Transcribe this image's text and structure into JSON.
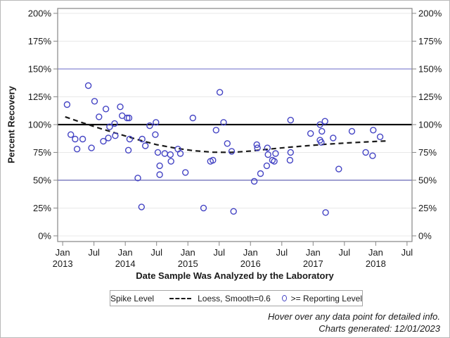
{
  "figure": {
    "footer_line1": "Hover over any data point for detailed info.",
    "footer_line2": "Charts generated: 12/01/2023"
  },
  "chart_data": {
    "type": "scatter",
    "title": "",
    "xlabel": "Date Sample Was Analyzed by the Laboratory",
    "ylabel": "Percent Recovery",
    "x_axis": {
      "min": 2012.92,
      "max": 2018.58,
      "ticks": [
        {
          "x": 2013.0,
          "line1": "Jan",
          "line2": "2013"
        },
        {
          "x": 2013.5,
          "line1": "Jul",
          "line2": ""
        },
        {
          "x": 2014.0,
          "line1": "Jan",
          "line2": "2014"
        },
        {
          "x": 2014.5,
          "line1": "Jul",
          "line2": ""
        },
        {
          "x": 2015.0,
          "line1": "Jan",
          "line2": "2015"
        },
        {
          "x": 2015.5,
          "line1": "Jul",
          "line2": ""
        },
        {
          "x": 2016.0,
          "line1": "Jan",
          "line2": "2016"
        },
        {
          "x": 2016.5,
          "line1": "Jul",
          "line2": ""
        },
        {
          "x": 2017.0,
          "line1": "Jan",
          "line2": "2017"
        },
        {
          "x": 2017.5,
          "line1": "Jul",
          "line2": ""
        },
        {
          "x": 2018.0,
          "line1": "Jan",
          "line2": "2018"
        },
        {
          "x": 2018.5,
          "line1": "Jul",
          "line2": ""
        }
      ]
    },
    "y_axis": {
      "min": -5.1,
      "max": 204.4,
      "ticks": [
        0,
        25,
        50,
        75,
        100,
        125,
        150,
        175,
        200
      ],
      "tick_suffix": "%",
      "mirrored_right": true,
      "grid": true
    },
    "reference_lines": [
      {
        "value": 150,
        "color": "#7a7ace",
        "width": 1.2
      },
      {
        "value": 100,
        "color": "#000000",
        "width": 2.2
      },
      {
        "value": 50,
        "color": "#5555ae",
        "width": 1.2
      }
    ],
    "series": [
      {
        "name": ">= Reporting Level",
        "kind": "scatter",
        "marker": "open-circle",
        "color": "#4444c4",
        "points": [
          [
            2013.07,
            118
          ],
          [
            2013.13,
            91
          ],
          [
            2013.2,
            87
          ],
          [
            2013.23,
            78
          ],
          [
            2013.32,
            87
          ],
          [
            2013.41,
            135
          ],
          [
            2013.46,
            79
          ],
          [
            2013.51,
            121
          ],
          [
            2013.58,
            107
          ],
          [
            2013.65,
            85
          ],
          [
            2013.69,
            114
          ],
          [
            2013.73,
            88
          ],
          [
            2013.75,
            98
          ],
          [
            2013.83,
            101
          ],
          [
            2013.84,
            90
          ],
          [
            2013.92,
            116
          ],
          [
            2013.95,
            108
          ],
          [
            2014.03,
            106
          ],
          [
            2014.05,
            77
          ],
          [
            2014.06,
            106
          ],
          [
            2014.07,
            87
          ],
          [
            2014.2,
            52
          ],
          [
            2014.26,
            26
          ],
          [
            2014.27,
            87
          ],
          [
            2014.32,
            81
          ],
          [
            2014.39,
            99
          ],
          [
            2014.48,
            91
          ],
          [
            2014.49,
            102
          ],
          [
            2014.52,
            75
          ],
          [
            2014.55,
            63
          ],
          [
            2014.55,
            55
          ],
          [
            2014.63,
            74
          ],
          [
            2014.72,
            73
          ],
          [
            2014.73,
            67
          ],
          [
            2014.84,
            78
          ],
          [
            2014.88,
            74
          ],
          [
            2014.96,
            57
          ],
          [
            2015.08,
            106
          ],
          [
            2015.25,
            25
          ],
          [
            2015.36,
            67
          ],
          [
            2015.4,
            68
          ],
          [
            2015.45,
            95
          ],
          [
            2015.51,
            129
          ],
          [
            2015.57,
            102
          ],
          [
            2015.63,
            83
          ],
          [
            2015.7,
            76
          ],
          [
            2015.73,
            22
          ],
          [
            2016.06,
            49
          ],
          [
            2016.1,
            82
          ],
          [
            2016.11,
            79
          ],
          [
            2016.16,
            56
          ],
          [
            2016.26,
            63
          ],
          [
            2016.27,
            79
          ],
          [
            2016.28,
            73
          ],
          [
            2016.35,
            68
          ],
          [
            2016.38,
            67
          ],
          [
            2016.4,
            74
          ],
          [
            2016.63,
            68
          ],
          [
            2016.64,
            104
          ],
          [
            2016.64,
            75
          ],
          [
            2016.96,
            92
          ],
          [
            2017.11,
            100
          ],
          [
            2017.11,
            86
          ],
          [
            2017.13,
            84
          ],
          [
            2017.14,
            94
          ],
          [
            2017.19,
            103
          ],
          [
            2017.2,
            21
          ],
          [
            2017.32,
            88
          ],
          [
            2017.41,
            60
          ],
          [
            2017.62,
            94
          ],
          [
            2017.84,
            75
          ],
          [
            2017.95,
            72
          ],
          [
            2017.96,
            95
          ],
          [
            2018.07,
            89
          ]
        ]
      },
      {
        "name": "Loess, Smooth=0.6",
        "kind": "line",
        "style": "dashed",
        "color": "#1a1a1a",
        "points": [
          [
            2013.04,
            107
          ],
          [
            2013.3,
            102
          ],
          [
            2013.6,
            96.5
          ],
          [
            2013.9,
            91.5
          ],
          [
            2014.2,
            86.5
          ],
          [
            2014.5,
            82
          ],
          [
            2014.8,
            78.8
          ],
          [
            2015.1,
            76.5
          ],
          [
            2015.4,
            75.2
          ],
          [
            2015.7,
            75
          ],
          [
            2016.0,
            76.2
          ],
          [
            2016.3,
            78
          ],
          [
            2016.6,
            79.6
          ],
          [
            2016.9,
            81
          ],
          [
            2017.2,
            82.3
          ],
          [
            2017.5,
            83.4
          ],
          [
            2017.8,
            84.3
          ],
          [
            2018.05,
            85
          ],
          [
            2018.17,
            85.3
          ]
        ]
      }
    ],
    "legend": {
      "title": "Spike Level",
      "position": "bottom",
      "items": [
        {
          "sample": "dashed-line",
          "label": "Loess, Smooth=0.6"
        },
        {
          "sample": "open-circle",
          "label": ">= Reporting Level"
        }
      ]
    },
    "colors": {
      "marker": "#4444c4",
      "grid": "#e8e8e8",
      "frame": "#868686",
      "loess": "#1a1a1a"
    }
  }
}
